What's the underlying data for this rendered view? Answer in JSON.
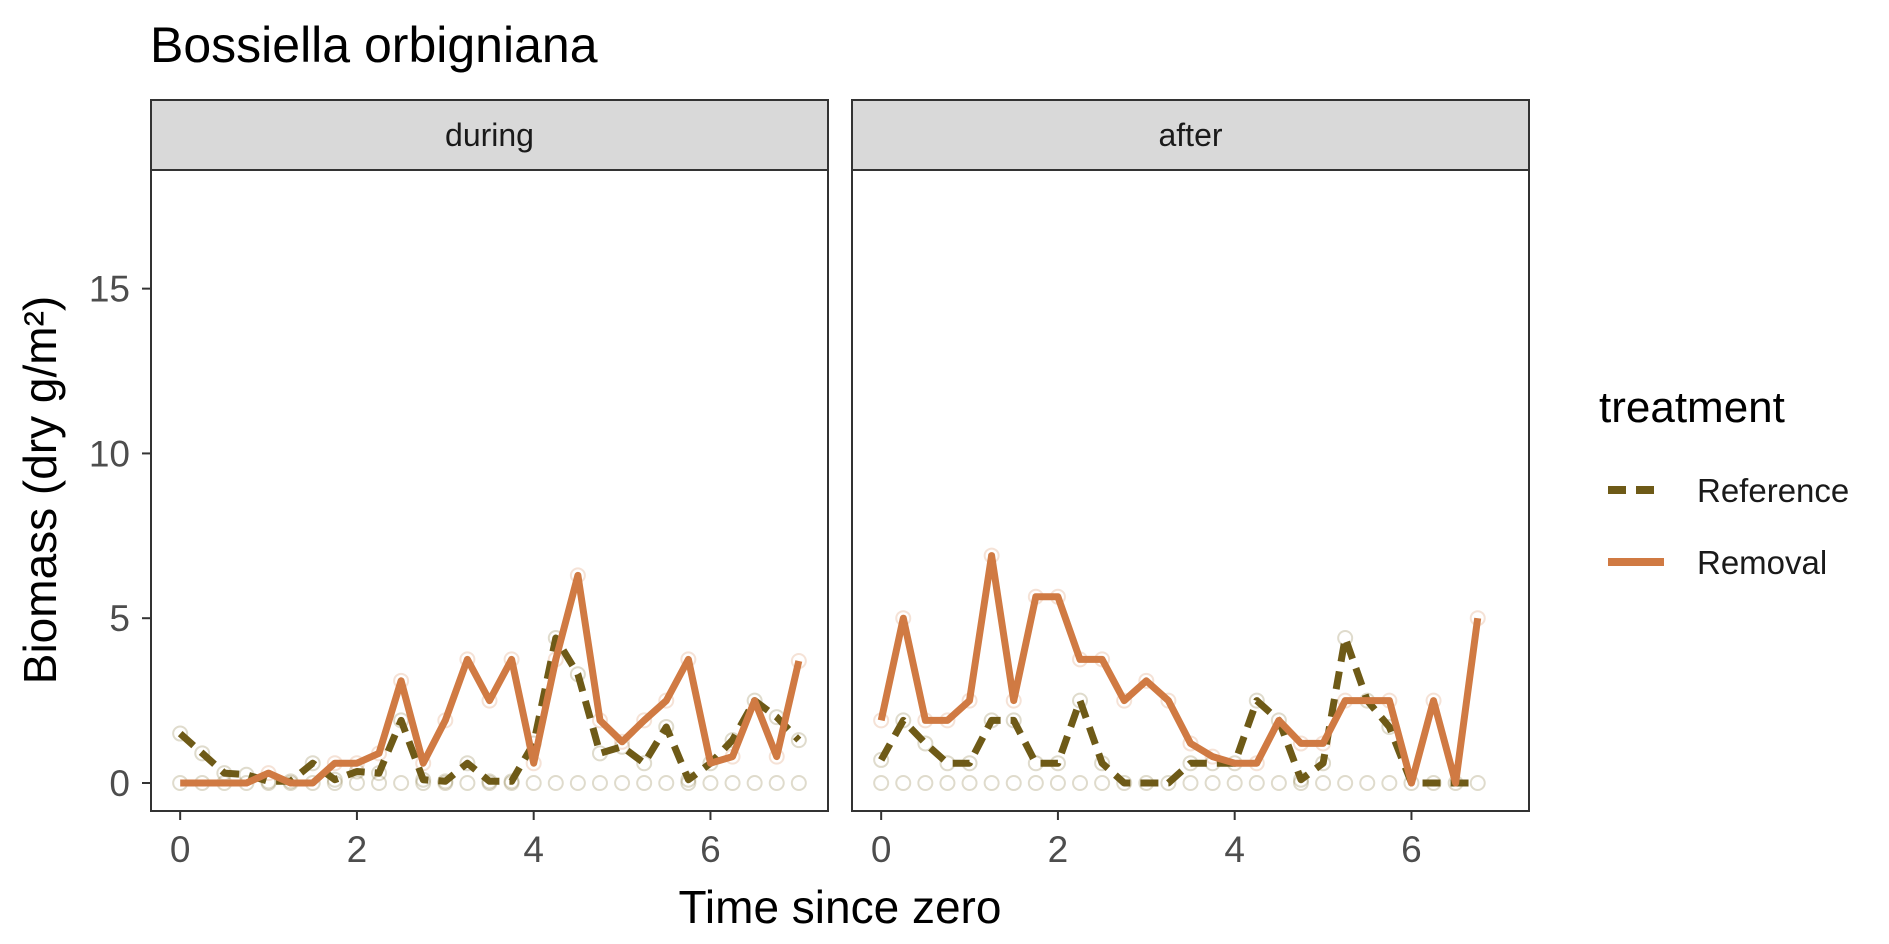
{
  "chart_data": {
    "type": "line",
    "title": "Bossiella orbigniana",
    "xlabel": "Time since zero",
    "ylabel": "Biomass (dry g/m²)",
    "xlim": [
      -0.33,
      7.33
    ],
    "ylim": [
      -0.85,
      18.6
    ],
    "x_ticks": [
      0,
      2,
      4,
      6
    ],
    "y_ticks": [
      0,
      5,
      10,
      15
    ],
    "grid": false,
    "legend": {
      "title": "treatment",
      "position": "right",
      "entries": [
        {
          "name": "Reference",
          "color": "#6e5a17",
          "dash": "dashed"
        },
        {
          "name": "Removal",
          "color": "#d07a43",
          "dash": "solid"
        }
      ]
    },
    "panels": [
      {
        "strip": "during",
        "series": [
          {
            "name": "Reference",
            "x": [
              0,
              0.25,
              0.5,
              0.75,
              1,
              1.25,
              1.5,
              1.75,
              2,
              2.25,
              2.5,
              2.75,
              3,
              3.25,
              3.5,
              3.75,
              4,
              4.25,
              4.5,
              4.75,
              5,
              5.25,
              5.5,
              5.75,
              6,
              6.25,
              6.5,
              6.75,
              7
            ],
            "y": [
              1.5,
              0.9,
              0.3,
              0.25,
              0.05,
              0.05,
              0.6,
              0.1,
              0.35,
              0.3,
              1.9,
              0.1,
              0.05,
              0.6,
              0.05,
              0.05,
              1.2,
              4.4,
              3.3,
              0.9,
              1.1,
              0.6,
              1.7,
              0.1,
              0.6,
              1.3,
              2.5,
              2.0,
              1.3
            ]
          },
          {
            "name": "Removal",
            "x": [
              0,
              0.25,
              0.5,
              0.75,
              1,
              1.25,
              1.5,
              1.75,
              2,
              2.25,
              2.5,
              2.75,
              3,
              3.25,
              3.5,
              3.75,
              4,
              4.25,
              4.5,
              4.75,
              5,
              5.25,
              5.5,
              5.75,
              6,
              6.25,
              6.5,
              6.75,
              7
            ],
            "y": [
              0,
              0,
              0,
              0,
              0.3,
              0,
              0,
              0.6,
              0.6,
              0.9,
              3.1,
              0.6,
              1.9,
              3.75,
              2.5,
              3.75,
              0.6,
              3.75,
              6.3,
              1.9,
              1.25,
              1.9,
              2.5,
              3.75,
              0.6,
              0.8,
              2.5,
              0.8,
              3.7
            ]
          }
        ]
      },
      {
        "strip": "after",
        "series": [
          {
            "name": "Reference",
            "x": [
              0,
              0.25,
              0.5,
              0.75,
              1,
              1.25,
              1.5,
              1.75,
              2,
              2.25,
              2.5,
              2.75,
              3,
              3.25,
              3.5,
              3.75,
              4,
              4.25,
              4.5,
              4.75,
              5,
              5.25,
              5.5,
              5.75,
              6,
              6.25,
              6.5,
              6.75
            ],
            "y": [
              0.7,
              1.9,
              1.2,
              0.6,
              0.6,
              1.9,
              1.9,
              0.6,
              0.6,
              2.5,
              0.6,
              0,
              0,
              0,
              0.6,
              0.6,
              0.6,
              2.5,
              1.9,
              0.1,
              0.6,
              4.4,
              2.5,
              1.7,
              0,
              0,
              0,
              0
            ]
          },
          {
            "name": "Removal",
            "x": [
              0,
              0.25,
              0.5,
              0.75,
              1,
              1.25,
              1.5,
              1.75,
              2,
              2.25,
              2.5,
              2.75,
              3,
              3.25,
              3.5,
              3.75,
              4,
              4.25,
              4.5,
              4.75,
              5,
              5.25,
              5.5,
              5.75,
              6,
              6.25,
              6.5,
              6.75
            ],
            "y": [
              1.9,
              5.0,
              1.9,
              1.9,
              2.5,
              6.9,
              2.5,
              5.65,
              5.65,
              3.75,
              3.75,
              2.5,
              3.1,
              2.5,
              1.2,
              0.8,
              0.6,
              0.6,
              1.9,
              1.2,
              1.2,
              2.5,
              2.5,
              2.5,
              0,
              2.5,
              0,
              5.0
            ]
          }
        ]
      }
    ]
  }
}
